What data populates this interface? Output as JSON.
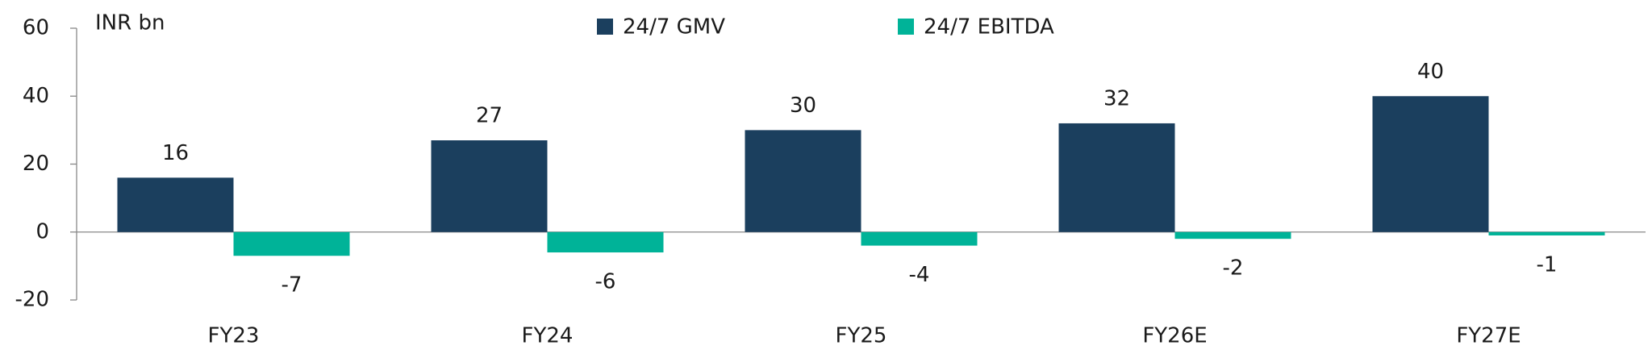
{
  "chart_data": {
    "type": "bar",
    "y_label": "INR bn",
    "categories": [
      "FY23",
      "FY24",
      "FY25",
      "FY26E",
      "FY27E"
    ],
    "series": [
      {
        "name": "24/7 GMV",
        "color": "#1b3f5e",
        "values": [
          16,
          27,
          30,
          32,
          40
        ]
      },
      {
        "name": "24/7 EBITDA",
        "color": "#00b398",
        "values": [
          -7,
          -6,
          -4,
          -2,
          -1
        ]
      }
    ],
    "ylim": [
      -20,
      60
    ],
    "yticks": [
      -20,
      0,
      20,
      40,
      60
    ],
    "grid": false
  }
}
